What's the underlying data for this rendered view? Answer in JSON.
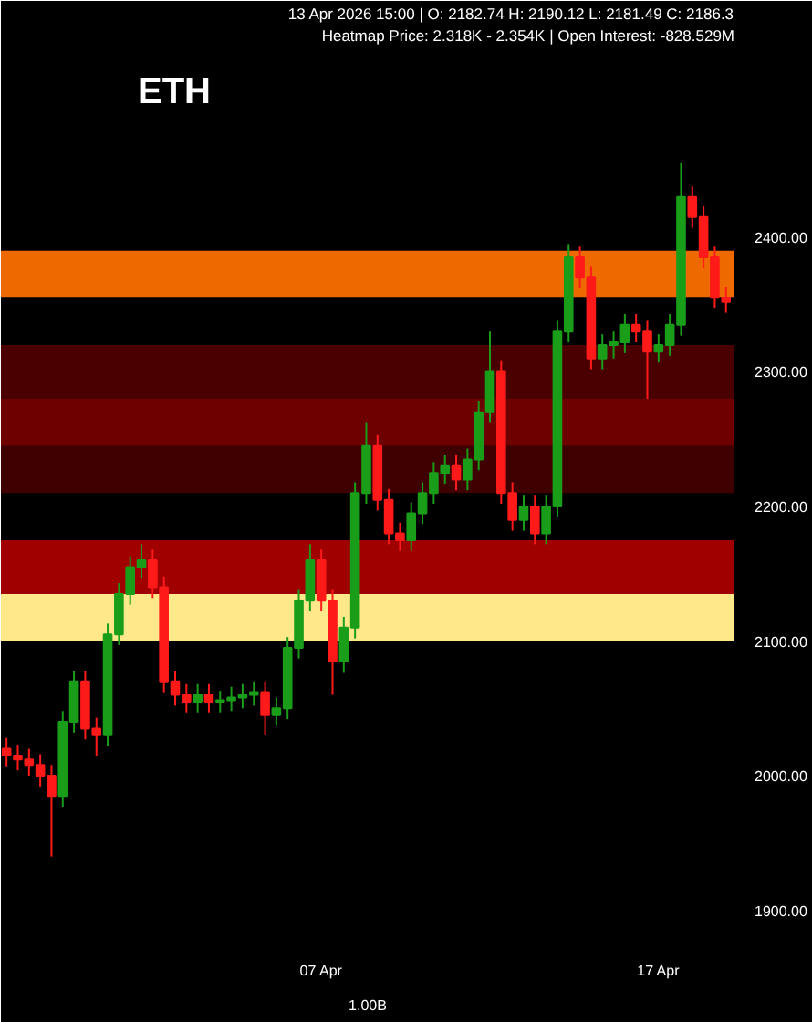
{
  "chart_data": {
    "type": "candlestick",
    "title": "ETH",
    "annotations": [
      "13 Apr 2026 15:00 | O: 2182.74 H: 2190.12 L: 2181.49 C: 2186.3",
      "Heatmap Price: 2.318K - 2.354K | Open Interest: -828.529M",
      "1.00B"
    ],
    "x": [
      "2026-03-28T16:00",
      "2026-03-29T00:00",
      "2026-03-29T08:00",
      "2026-03-29T16:00",
      "2026-03-30T00:00",
      "2026-03-30T08:00",
      "2026-03-30T16:00",
      "2026-03-31T00:00",
      "2026-03-31T08:00",
      "2026-03-31T16:00",
      "2026-04-01T00:00",
      "2026-04-01T08:00",
      "2026-04-01T16:00",
      "2026-04-02T00:00",
      "2026-04-02T08:00",
      "2026-04-02T16:00",
      "2026-04-03T00:00",
      "2026-04-03T08:00",
      "2026-04-03T16:00",
      "2026-04-04T00:00",
      "2026-04-04T08:00",
      "2026-04-04T16:00",
      "2026-04-05T00:00",
      "2026-04-05T08:00",
      "2026-04-05T16:00",
      "2026-04-06T00:00",
      "2026-04-06T08:00",
      "2026-04-06T16:00",
      "2026-04-07T00:00",
      "2026-04-07T08:00",
      "2026-04-07T16:00",
      "2026-04-08T00:00",
      "2026-04-08T08:00",
      "2026-04-08T16:00",
      "2026-04-09T00:00",
      "2026-04-09T08:00",
      "2026-04-09T16:00",
      "2026-04-10T00:00",
      "2026-04-10T08:00",
      "2026-04-10T16:00",
      "2026-04-11T00:00",
      "2026-04-11T08:00",
      "2026-04-11T16:00",
      "2026-04-12T00:00",
      "2026-04-12T08:00",
      "2026-04-12T16:00",
      "2026-04-13T00:00",
      "2026-04-13T08:00",
      "2026-04-13T16:00",
      "2026-04-14T00:00",
      "2026-04-14T08:00",
      "2026-04-14T16:00",
      "2026-04-15T00:00",
      "2026-04-15T08:00",
      "2026-04-15T16:00",
      "2026-04-16T00:00",
      "2026-04-16T08:00",
      "2026-04-16T16:00",
      "2026-04-17T00:00",
      "2026-04-17T08:00",
      "2026-04-17T16:00",
      "2026-04-18T00:00",
      "2026-04-18T08:00",
      "2026-04-18T16:00",
      "2026-04-19T00:00"
    ],
    "ohlc": [
      [
        2020,
        2028,
        2007,
        2015
      ],
      [
        2015,
        2023,
        2004,
        2012
      ],
      [
        2012,
        2020,
        2000,
        2008
      ],
      [
        2008,
        2016,
        1992,
        2000
      ],
      [
        2000,
        2008,
        1940,
        1985
      ],
      [
        1985,
        2048,
        1977,
        2040
      ],
      [
        2040,
        2078,
        2032,
        2070
      ],
      [
        2070,
        2078,
        2027,
        2035
      ],
      [
        2035,
        2043,
        2015,
        2030
      ],
      [
        2030,
        2113,
        2022,
        2105
      ],
      [
        2105,
        2143,
        2097,
        2135
      ],
      [
        2135,
        2163,
        2127,
        2155
      ],
      [
        2155,
        2172,
        2147,
        2160
      ],
      [
        2160,
        2168,
        2132,
        2140
      ],
      [
        2140,
        2148,
        2062,
        2070
      ],
      [
        2070,
        2078,
        2052,
        2060
      ],
      [
        2060,
        2068,
        2047,
        2055
      ],
      [
        2055,
        2068,
        2047,
        2060
      ],
      [
        2060,
        2068,
        2047,
        2055
      ],
      [
        2055,
        2063,
        2047,
        2056
      ],
      [
        2056,
        2066,
        2048,
        2058
      ],
      [
        2058,
        2068,
        2050,
        2060
      ],
      [
        2060,
        2070,
        2052,
        2062
      ],
      [
        2062,
        2070,
        2030,
        2045
      ],
      [
        2045,
        2058,
        2037,
        2050
      ],
      [
        2050,
        2103,
        2042,
        2095
      ],
      [
        2095,
        2138,
        2087,
        2130
      ],
      [
        2130,
        2172,
        2122,
        2160
      ],
      [
        2160,
        2168,
        2122,
        2130
      ],
      [
        2130,
        2138,
        2060,
        2085
      ],
      [
        2085,
        2118,
        2077,
        2110
      ],
      [
        2110,
        2218,
        2102,
        2210
      ],
      [
        2210,
        2262,
        2202,
        2245
      ],
      [
        2245,
        2253,
        2197,
        2205
      ],
      [
        2205,
        2213,
        2172,
        2180
      ],
      [
        2180,
        2188,
        2167,
        2175
      ],
      [
        2175,
        2203,
        2167,
        2195
      ],
      [
        2195,
        2218,
        2187,
        2210
      ],
      [
        2210,
        2233,
        2202,
        2225
      ],
      [
        2225,
        2238,
        2217,
        2230
      ],
      [
        2230,
        2238,
        2212,
        2220
      ],
      [
        2220,
        2243,
        2212,
        2235
      ],
      [
        2235,
        2278,
        2227,
        2270
      ],
      [
        2270,
        2330,
        2262,
        2300
      ],
      [
        2300,
        2308,
        2202,
        2210
      ],
      [
        2210,
        2218,
        2182,
        2190
      ],
      [
        2190,
        2208,
        2182,
        2200
      ],
      [
        2200,
        2208,
        2172,
        2180
      ],
      [
        2180,
        2208,
        2172,
        2200
      ],
      [
        2200,
        2338,
        2192,
        2330
      ],
      [
        2330,
        2395,
        2322,
        2385
      ],
      [
        2385,
        2393,
        2362,
        2370
      ],
      [
        2370,
        2378,
        2302,
        2310
      ],
      [
        2310,
        2328,
        2302,
        2320
      ],
      [
        2320,
        2330,
        2310,
        2322
      ],
      [
        2322,
        2343,
        2314,
        2335
      ],
      [
        2335,
        2343,
        2322,
        2330
      ],
      [
        2330,
        2338,
        2280,
        2315
      ],
      [
        2315,
        2328,
        2307,
        2320
      ],
      [
        2320,
        2343,
        2312,
        2335
      ],
      [
        2335,
        2455,
        2327,
        2430
      ],
      [
        2430,
        2438,
        2407,
        2415
      ],
      [
        2415,
        2423,
        2377,
        2385
      ],
      [
        2385,
        2393,
        2347,
        2355
      ],
      [
        2355,
        2363,
        2344,
        2352
      ]
    ],
    "colors": [
      "#ff1a1a",
      "#ff1a1a",
      "#ff1a1a",
      "#ff1a1a",
      "#ff1a1a",
      "#1a9e1a",
      "#1a9e1a",
      "#ff1a1a",
      "#ff1a1a",
      "#1a9e1a",
      "#1a9e1a",
      "#1a9e1a",
      "#1a9e1a",
      "#ff1a1a",
      "#ff1a1a",
      "#ff1a1a",
      "#ff1a1a",
      "#1a9e1a",
      "#ff1a1a",
      "#1a9e1a",
      "#1a9e1a",
      "#1a9e1a",
      "#1a9e1a",
      "#ff1a1a",
      "#1a9e1a",
      "#1a9e1a",
      "#1a9e1a",
      "#1a9e1a",
      "#ff1a1a",
      "#ff1a1a",
      "#1a9e1a",
      "#1a9e1a",
      "#1a9e1a",
      "#ff1a1a",
      "#ff1a1a",
      "#ff1a1a",
      "#1a9e1a",
      "#1a9e1a",
      "#1a9e1a",
      "#1a9e1a",
      "#ff1a1a",
      "#1a9e1a",
      "#1a9e1a",
      "#1a9e1a",
      "#ff1a1a",
      "#ff1a1a",
      "#1a9e1a",
      "#ff1a1a",
      "#1a9e1a",
      "#1a9e1a",
      "#1a9e1a",
      "#ff1a1a",
      "#ff1a1a",
      "#1a9e1a",
      "#1a9e1a",
      "#1a9e1a",
      "#ff1a1a",
      "#ff1a1a",
      "#1a9e1a",
      "#1a9e1a",
      "#1a9e1a",
      "#ff1a1a",
      "#ff1a1a",
      "#ff1a1a",
      "#ff1a1a"
    ],
    "bands": [
      {
        "axis": "y",
        "from": 2355,
        "to": 2390,
        "color": "#ee6a00"
      },
      {
        "axis": "y",
        "from": 2280,
        "to": 2320,
        "color": "#4a0000"
      },
      {
        "axis": "y",
        "from": 2245,
        "to": 2280,
        "color": "#6e0000"
      },
      {
        "axis": "y",
        "from": 2210,
        "to": 2245,
        "color": "#3e0000"
      },
      {
        "axis": "y",
        "from": 2135,
        "to": 2175,
        "color": "#a00000"
      },
      {
        "axis": "y",
        "from": 2100,
        "to": 2135,
        "color": "#ffe88a"
      }
    ],
    "xlim": [
      "2026-03-28T12:00",
      "2026-04-19T06:00"
    ],
    "xticks": [
      {
        "value": "2026-04-07",
        "label": "07 Apr"
      },
      {
        "value": "2026-04-17",
        "label": "17 Apr"
      }
    ],
    "ylim": [
      1876,
      2543
    ],
    "yticks": [
      {
        "value": 1900,
        "label": "1900.00"
      },
      {
        "value": 2000,
        "label": "2000.00"
      },
      {
        "value": 2100,
        "label": "2100.00"
      },
      {
        "value": 2200,
        "label": "2200.00"
      },
      {
        "value": 2300,
        "label": "2300.00"
      },
      {
        "value": 2400,
        "label": "2400.00"
      }
    ],
    "grid": false
  }
}
